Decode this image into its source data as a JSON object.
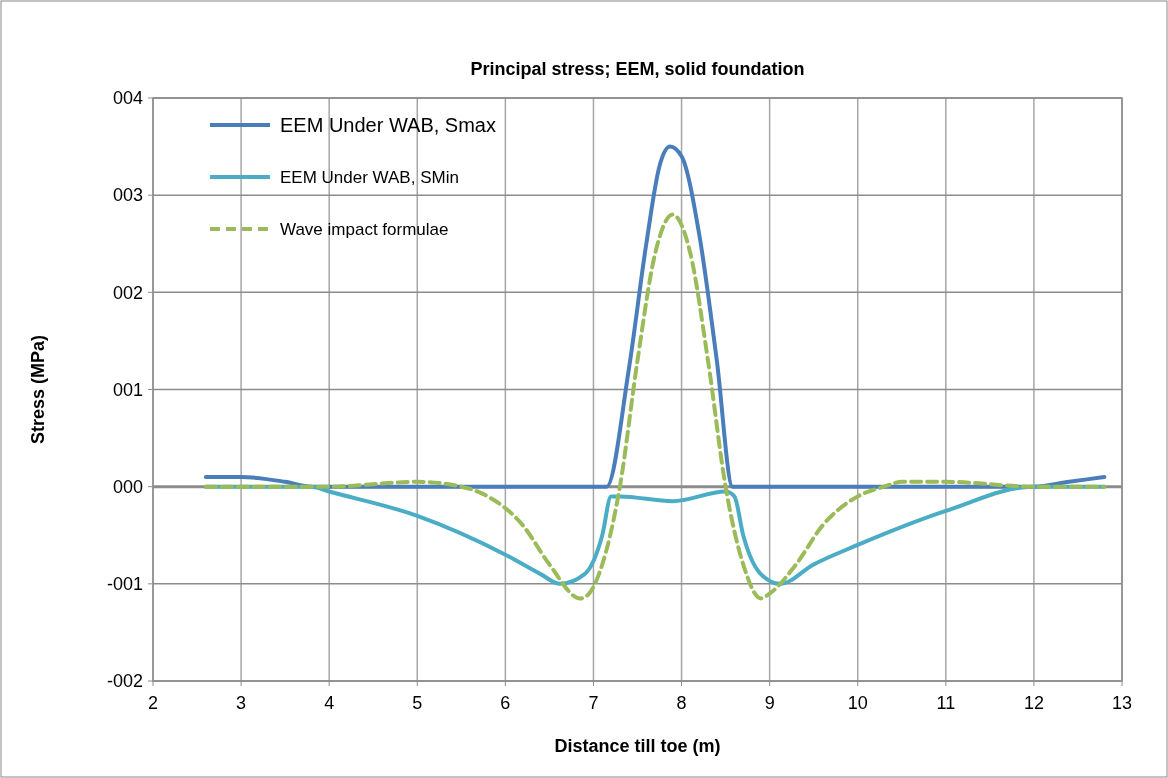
{
  "chart_data": {
    "type": "line",
    "title": "Principal stress; EEM, solid foundation",
    "xlabel": "Distance till toe (m)",
    "ylabel": "Stress (MPa)",
    "xlim": [
      2,
      13
    ],
    "xticks": [
      2,
      3,
      4,
      5,
      6,
      7,
      8,
      9,
      10,
      11,
      12,
      13
    ],
    "ylim": [
      -2,
      4
    ],
    "yticks": [
      {
        "value": -2,
        "label": "-002"
      },
      {
        "value": -1,
        "label": "-001"
      },
      {
        "value": 0,
        "label": "000"
      },
      {
        "value": 1,
        "label": "001"
      },
      {
        "value": 2,
        "label": "002"
      },
      {
        "value": 3,
        "label": "003"
      },
      {
        "value": 4,
        "label": "004"
      }
    ],
    "grid": true,
    "legend": "top left",
    "marker": "none",
    "series": [
      {
        "name": "EEM Under WAB, Smax",
        "color": "#4a7ebb",
        "line_style": "solid",
        "x": [
          2.6,
          3,
          3.5,
          3.8,
          7.15,
          7.4,
          7.6,
          7.75,
          7.87,
          8.0,
          8.2,
          8.4,
          8.58,
          12,
          12.4,
          12.8
        ],
        "values": [
          0.1,
          0.1,
          0.05,
          0,
          0,
          1.2,
          2.5,
          3.3,
          3.5,
          3.4,
          2.6,
          1.3,
          0,
          0,
          0.05,
          0.1
        ]
      },
      {
        "name": "EEM Under WAB, SMin",
        "color": "#4bacc6",
        "line_style": "solid",
        "x": [
          2.6,
          3.8,
          4,
          5,
          6,
          6.4,
          6.62,
          6.9,
          7.1,
          7.2,
          7.3,
          7.9,
          8.5,
          8.6,
          8.7,
          8.9,
          9.12,
          9.5,
          10,
          11,
          12,
          12.8
        ],
        "values": [
          0,
          0,
          -0.05,
          -0.3,
          -0.7,
          -0.9,
          -1,
          -0.9,
          -0.5,
          -0.1,
          -0.1,
          -0.15,
          -0.05,
          -0.1,
          -0.5,
          -0.9,
          -1,
          -0.8,
          -0.6,
          -0.25,
          0,
          0
        ]
      },
      {
        "name": "Wave impact formulae",
        "color": "#9bbb59",
        "line_style": "dashed",
        "x": [
          2.6,
          4,
          5,
          5.5,
          5.8,
          6.2,
          6.5,
          6.85,
          6.95,
          7.1,
          7.3,
          7.5,
          7.7,
          7.9,
          8.1,
          8.3,
          8.5,
          8.7,
          8.9,
          9.0,
          9.3,
          9.6,
          10,
          10.3,
          10.5,
          11,
          12,
          12.8
        ],
        "values": [
          0,
          0,
          0.05,
          0,
          -0.1,
          -0.4,
          -0.8,
          -1.15,
          -1.1,
          -0.8,
          0,
          1.3,
          2.4,
          2.8,
          2.4,
          1.3,
          0,
          -0.8,
          -1.15,
          -1.1,
          -0.8,
          -0.4,
          -0.1,
          0,
          0.05,
          0.05,
          0,
          0
        ]
      }
    ]
  }
}
